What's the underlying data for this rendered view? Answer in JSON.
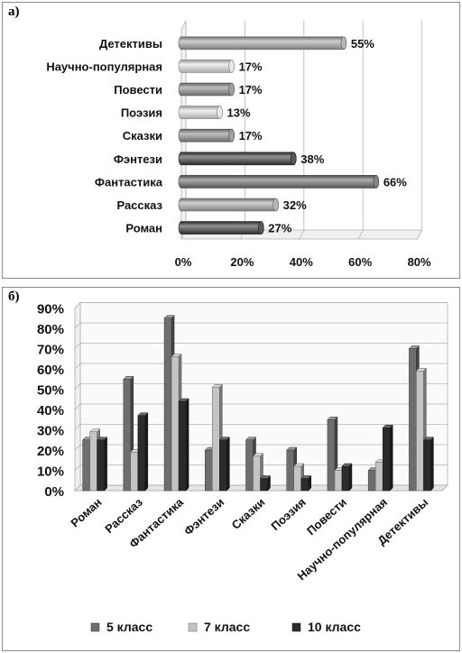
{
  "chart_data": [
    {
      "panel_label": "а)",
      "type": "bar",
      "orientation": "horizontal",
      "categories": [
        "Детективы",
        "Научно-популярная",
        "Повести",
        "Поэзия",
        "Сказки",
        "Фэнтези",
        "Фантастика",
        "Рассказ",
        "Роман"
      ],
      "values": [
        55,
        17,
        17,
        13,
        17,
        38,
        66,
        32,
        27
      ],
      "value_labels": [
        "55%",
        "17%",
        "17%",
        "13%",
        "17%",
        "38%",
        "66%",
        "32%",
        "27%"
      ],
      "bar_colors": [
        "#a9a9a9",
        "#e4e4e4",
        "#8f8f8f",
        "#e4e4e4",
        "#8f8f8f",
        "#3a3a3a",
        "#6e6e6e",
        "#a9a9a9",
        "#3a3a3a"
      ],
      "xticks": [
        "0%",
        "20%",
        "40%",
        "60%",
        "80%"
      ],
      "xlim": [
        0,
        80
      ],
      "grid": true
    },
    {
      "panel_label": "б)",
      "type": "bar",
      "categories": [
        "Роман",
        "Рассказ",
        "Фантастика",
        "Фэнтези",
        "Сказки",
        "Поэзия",
        "Повести",
        "Научно-популярная",
        "Детективы"
      ],
      "series": [
        {
          "name": "5 класс",
          "color": "#6e6e6e",
          "values": [
            25,
            55,
            85,
            20,
            25,
            20,
            35,
            10,
            70
          ]
        },
        {
          "name": "7 класс",
          "color": "#c4c4c4",
          "values": [
            29,
            19,
            66,
            51,
            17,
            12,
            10,
            14,
            59
          ]
        },
        {
          "name": "10 класс",
          "color": "#2b2b2b",
          "values": [
            25,
            37,
            44,
            25,
            6,
            6,
            12,
            31,
            25
          ]
        }
      ],
      "yticks": [
        "0%",
        "10%",
        "20%",
        "30%",
        "40%",
        "50%",
        "60%",
        "70%",
        "80%",
        "90%"
      ],
      "ylim": [
        0,
        90
      ],
      "grid": true,
      "legend_position": "bottom"
    }
  ]
}
